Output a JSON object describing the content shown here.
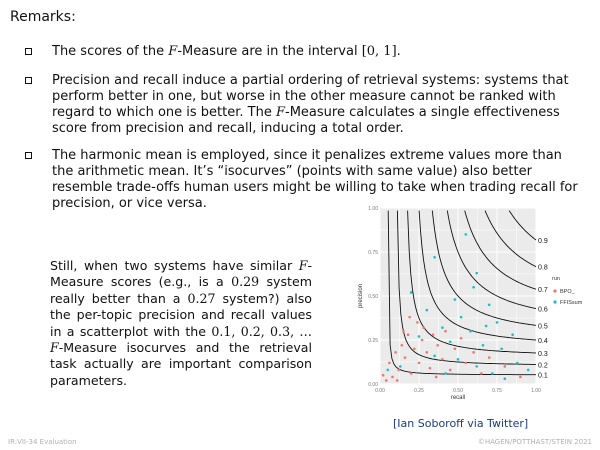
{
  "slide": {
    "heading": "Remarks:",
    "bullets": [
      {
        "pre": "The scores of the ",
        "F": "F",
        "mid": "-Measure are in the interval ",
        "interval": "[0, 1]",
        "post": "."
      },
      {
        "text1": "Precision and recall induce a partial ordering of retrieval systems: systems that perform better in one, but worse in the other measure cannot be ranked with regard to which one is better. The ",
        "F": "F",
        "text2": "-Measure calculates a single effectiveness score from precision and recall, inducing a total order."
      },
      {
        "text": "The harmonic mean is employed, since it penalizes extreme values more than the arithmetic mean. It’s “isocurves” (points with same value) also better resemble trade-offs human users might be willing to take when trading recall for precision, or vice versa."
      }
    ],
    "still": {
      "p1": "Still, when two systems have similar ",
      "F1": "F",
      "p2": "-Measure scores (e.g., is a ",
      "v1": "0.29",
      "p3": " system really better than a ",
      "v2": "0.27",
      "p4": " system?) also the per-topic precision and recall values in a scatterplot with the ",
      "seq": "0.1, 0.2, 0.3, …",
      "F2": "F",
      "p5": "-Measure isocurves and the retrieval task actually are important comparison parameters."
    },
    "caption": "[Ian Soboroff via Twitter]",
    "footer_left": "IR:VII-34   Evaluation",
    "footer_right": "©HAGEN/POTTHAST/STEIN 2021"
  },
  "chart_data": {
    "type": "scatter",
    "xlabel": "recall",
    "ylabel": "precision",
    "xlim": [
      0,
      1
    ],
    "ylim": [
      0,
      1
    ],
    "x_ticks": [
      "0.00",
      "0.25",
      "0.50",
      "0.75",
      "1.00"
    ],
    "y_ticks": [
      "0.00",
      "0.25",
      "0.50",
      "0.75",
      "1.00"
    ],
    "isocurve_labels": [
      "0.9",
      "0.8",
      "0.7",
      "0.6",
      "0.5",
      "0.4",
      "0.3",
      "0.2",
      "0.1"
    ],
    "isocurves": [
      0.9,
      0.8,
      0.7,
      0.6,
      0.5,
      0.4,
      0.3,
      0.2,
      0.1
    ],
    "legend_title": "run",
    "legend_position": "right",
    "grid": true,
    "colors": {
      "panel": "#ebebeb",
      "grid": "#ffffff",
      "series1": "#f0766d",
      "series2": "#18c0c4"
    },
    "series": [
      {
        "name": "BPO_",
        "color": "#f0766d",
        "points": [
          [
            0.02,
            0.05
          ],
          [
            0.04,
            0.02
          ],
          [
            0.06,
            0.12
          ],
          [
            0.08,
            0.04
          ],
          [
            0.1,
            0.18
          ],
          [
            0.12,
            0.08
          ],
          [
            0.14,
            0.22
          ],
          [
            0.15,
            0.3
          ],
          [
            0.16,
            0.15
          ],
          [
            0.18,
            0.28
          ],
          [
            0.2,
            0.06
          ],
          [
            0.22,
            0.2
          ],
          [
            0.24,
            0.35
          ],
          [
            0.25,
            0.12
          ],
          [
            0.27,
            0.25
          ],
          [
            0.3,
            0.18
          ],
          [
            0.32,
            0.09
          ],
          [
            0.34,
            0.28
          ],
          [
            0.37,
            0.22
          ],
          [
            0.4,
            0.14
          ],
          [
            0.42,
            0.3
          ],
          [
            0.45,
            0.08
          ],
          [
            0.48,
            0.2
          ],
          [
            0.52,
            0.26
          ],
          [
            0.55,
            0.12
          ],
          [
            0.6,
            0.18
          ],
          [
            0.65,
            0.06
          ],
          [
            0.7,
            0.15
          ],
          [
            0.8,
            0.1
          ],
          [
            0.9,
            0.04
          ],
          [
            0.11,
            0.02
          ],
          [
            0.19,
            0.38
          ],
          [
            0.28,
            0.32
          ],
          [
            0.36,
            0.04
          ]
        ]
      },
      {
        "name": "FFISsum",
        "color": "#18c0c4",
        "points": [
          [
            0.55,
            0.85
          ],
          [
            0.35,
            0.72
          ],
          [
            0.62,
            0.63
          ],
          [
            0.2,
            0.52
          ],
          [
            0.48,
            0.48
          ],
          [
            0.7,
            0.45
          ],
          [
            0.3,
            0.42
          ],
          [
            0.52,
            0.38
          ],
          [
            0.75,
            0.35
          ],
          [
            0.4,
            0.32
          ],
          [
            0.58,
            0.3
          ],
          [
            0.85,
            0.28
          ],
          [
            0.25,
            0.27
          ],
          [
            0.45,
            0.24
          ],
          [
            0.66,
            0.22
          ],
          [
            0.78,
            0.2
          ],
          [
            0.35,
            0.16
          ],
          [
            0.5,
            0.14
          ],
          [
            0.88,
            0.12
          ],
          [
            0.62,
            0.1
          ],
          [
            0.72,
            0.06
          ],
          [
            0.95,
            0.08
          ],
          [
            0.42,
            0.06
          ],
          [
            0.8,
            0.03
          ],
          [
            0.05,
            0.08
          ],
          [
            0.13,
            0.1
          ],
          [
            0.6,
            0.55
          ],
          [
            0.68,
            0.33
          ]
        ]
      }
    ]
  }
}
